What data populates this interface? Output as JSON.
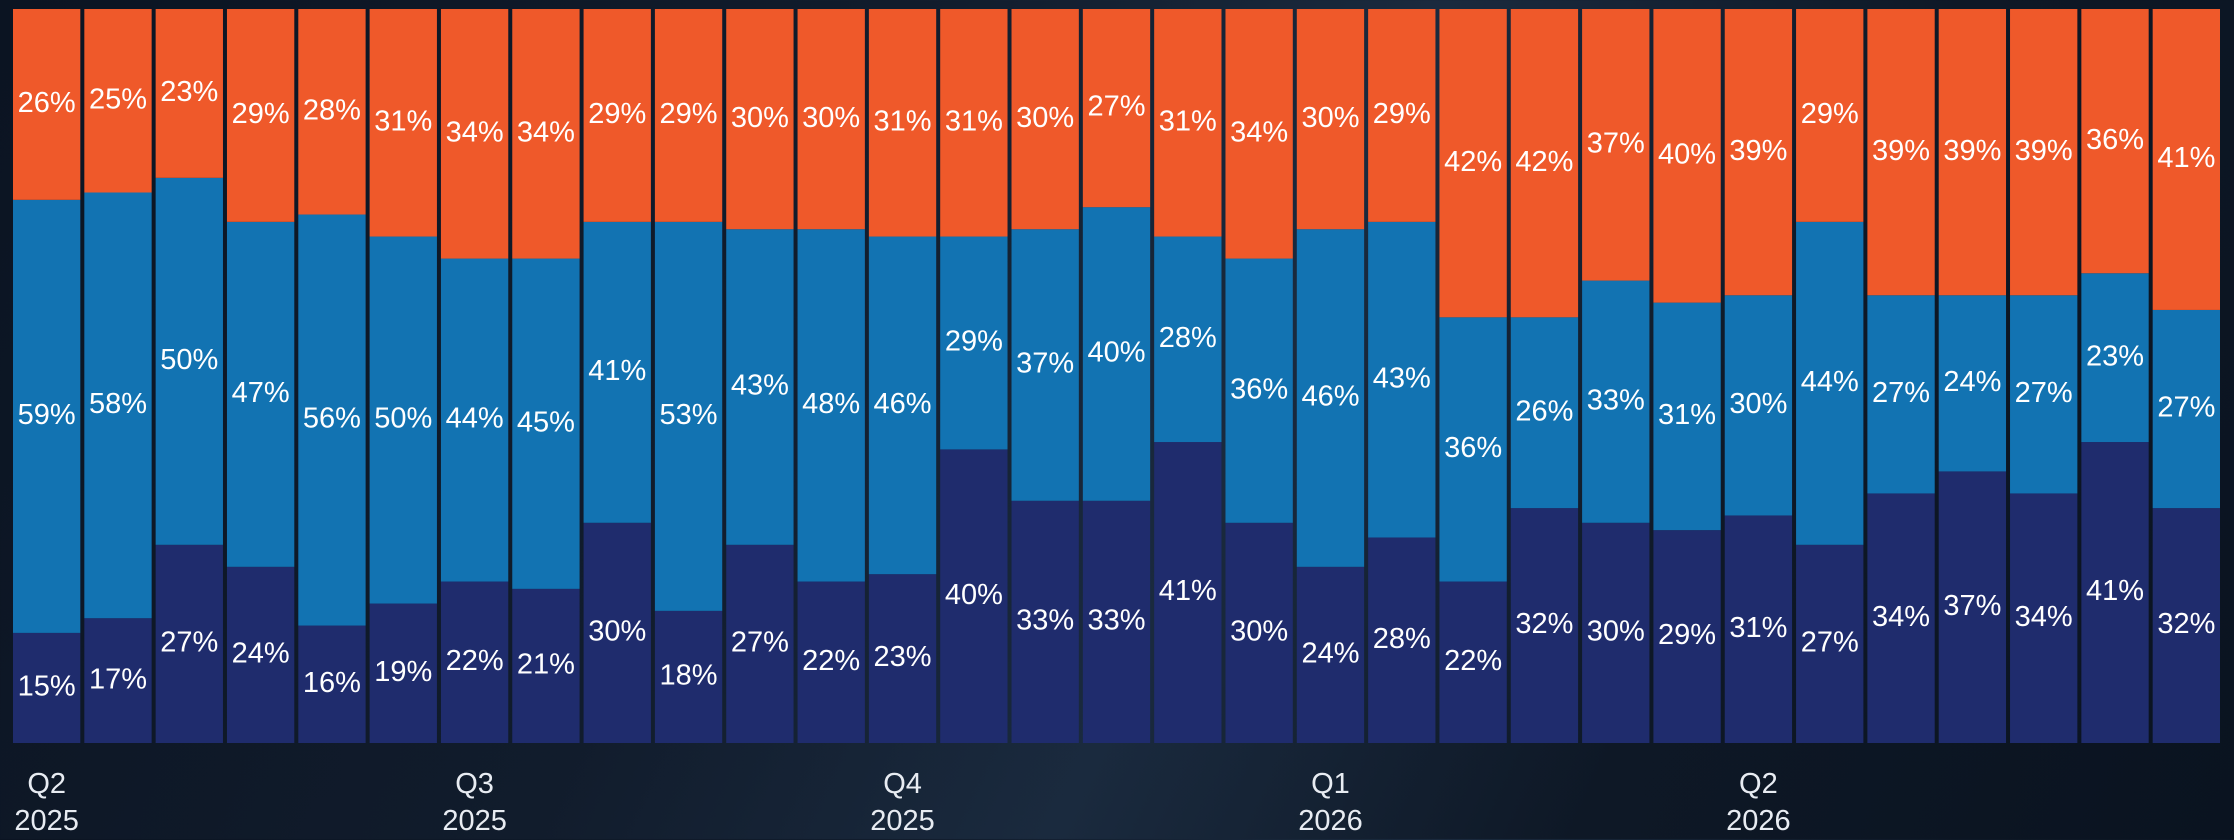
{
  "chart_data": {
    "type": "stacked_bar_100",
    "categories": [
      "Q2\n2025",
      null,
      null,
      null,
      null,
      null,
      "Q3\n2025",
      null,
      null,
      null,
      null,
      null,
      "Q4\n2025",
      null,
      null,
      null,
      null,
      null,
      "Q1\n2026",
      null,
      null,
      null,
      null,
      null,
      "Q2\n2026",
      null,
      null,
      null,
      null,
      null,
      null
    ],
    "series": [
      {
        "color": "#1f2c6d",
        "values": [
          15,
          17,
          27,
          24,
          16,
          19,
          22,
          21,
          30,
          18,
          27,
          22,
          23,
          40,
          33,
          33,
          41,
          30,
          24,
          28,
          22,
          32,
          30,
          29,
          31,
          27,
          34,
          37,
          34,
          41,
          32
        ],
        "value_labels": [
          "15%",
          "17%",
          "27%",
          "24%",
          "16%",
          "19%",
          "22%",
          "21%",
          "30%",
          "18%",
          "27%",
          "22%",
          "23%",
          "40%",
          "33%",
          "33%",
          "41%",
          "30%",
          "24%",
          "28%",
          "22%",
          "32%",
          "30%",
          "29%",
          "31%",
          "27%",
          "34%",
          "37%",
          "34%",
          "41%",
          "32%"
        ]
      },
      {
        "color": "#1273b2",
        "values": [
          59,
          58,
          50,
          47,
          56,
          50,
          44,
          45,
          41,
          53,
          43,
          48,
          46,
          29,
          37,
          40,
          28,
          36,
          46,
          43,
          36,
          26,
          33,
          31,
          30,
          44,
          27,
          24,
          27,
          23,
          27
        ],
        "value_labels": [
          "59%",
          "58%",
          "50%",
          "47%",
          "56%",
          "50%",
          "44%",
          "45%",
          "41%",
          "53%",
          "43%",
          "48%",
          "46%",
          "29%",
          "37%",
          "40%",
          "28%",
          "36%",
          "46%",
          "43%",
          "36%",
          "26%",
          "33%",
          "31%",
          "30%",
          "44%",
          "27%",
          "24%",
          "27%",
          "23%",
          "27%"
        ]
      },
      {
        "color": "#ef592a",
        "values": [
          26,
          25,
          23,
          29,
          28,
          31,
          34,
          34,
          29,
          29,
          30,
          30,
          31,
          31,
          30,
          27,
          31,
          34,
          30,
          29,
          42,
          42,
          37,
          40,
          39,
          29,
          39,
          39,
          39,
          36,
          41
        ],
        "value_labels": [
          "26%",
          "25%",
          "23%",
          "29%",
          "28%",
          "31%",
          "34%",
          "34%",
          "29%",
          "29%",
          "30%",
          "30%",
          "31%",
          "31%",
          "30%",
          "27%",
          "31%",
          "34%",
          "30%",
          "29%",
          "42%",
          "42%",
          "37%",
          "40%",
          "39%",
          "29%",
          "39%",
          "39%",
          "39%",
          "36%",
          "41%"
        ]
      }
    ]
  }
}
